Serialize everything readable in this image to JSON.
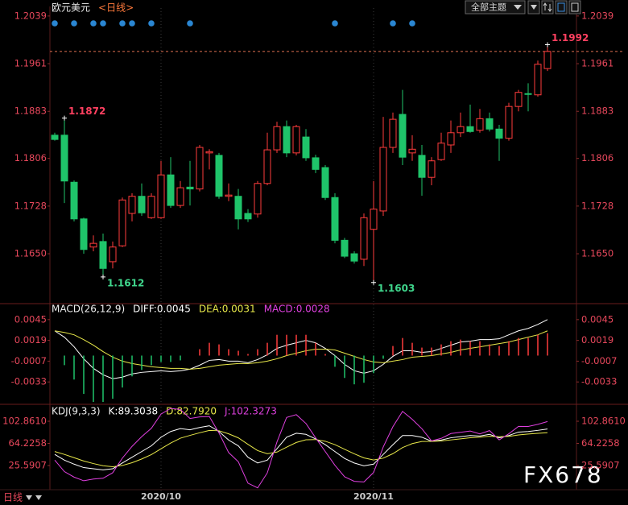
{
  "toolbar": {
    "theme_button": "全部主题"
  },
  "footer": {
    "period": "日线"
  },
  "watermark": "FX678",
  "chart_data": [
    {
      "type": "candlestick",
      "title": "欧元美元",
      "subtitle": "<日线>",
      "title_color": "#eeeeee",
      "subtitle_color": "#ff7a3c",
      "categories": [
        null,
        null,
        null,
        null,
        null,
        null,
        null,
        null,
        null,
        null,
        null,
        "2020/10",
        null,
        null,
        null,
        null,
        null,
        null,
        null,
        null,
        null,
        null,
        null,
        null,
        null,
        null,
        null,
        null,
        null,
        null,
        null,
        null,
        null,
        "2020/11",
        null,
        null,
        null,
        null,
        null,
        null,
        null,
        null,
        null,
        null,
        null,
        null,
        null,
        null,
        null,
        null,
        null,
        null
      ],
      "open": [
        1.1844,
        1.1844,
        1.1767,
        1.1707,
        1.1661,
        1.167,
        1.1637,
        1.1663,
        1.1716,
        1.1744,
        1.1709,
        1.1709,
        1.1779,
        1.1729,
        1.1759,
        1.1756,
        1.1815,
        1.1811,
        1.1744,
        1.1744,
        1.1716,
        1.1715,
        1.1765,
        1.182,
        1.1858,
        1.1815,
        1.1841,
        1.1807,
        1.1791,
        1.1742,
        1.1672,
        1.165,
        1.1641,
        1.169,
        1.172,
        1.1824,
        1.1878,
        1.1815,
        1.1811,
        1.1775,
        1.1804,
        1.1828,
        1.1848,
        1.1858,
        1.1852,
        1.1871,
        1.1854,
        1.1839,
        1.1891,
        1.1912,
        1.191,
        1.1953
      ],
      "high": [
        1.1848,
        1.1872,
        1.177,
        1.1709,
        1.168,
        1.1683,
        1.167,
        1.1742,
        1.1749,
        1.1765,
        1.1749,
        1.1802,
        1.1808,
        1.1769,
        1.1802,
        1.1828,
        1.1821,
        1.1815,
        1.1765,
        1.1756,
        1.1723,
        1.1769,
        1.1848,
        1.1866,
        1.1868,
        1.1861,
        1.1854,
        1.1812,
        1.1795,
        1.1749,
        1.1676,
        1.1654,
        1.1716,
        1.1769,
        1.1874,
        1.1881,
        1.1918,
        1.1844,
        1.1828,
        1.1808,
        1.1848,
        1.1868,
        1.1881,
        1.1894,
        1.1887,
        1.1881,
        1.1861,
        1.1897,
        1.1918,
        1.1929,
        1.1966,
        1.1992
      ],
      "low": [
        1.1835,
        1.1733,
        1.1703,
        1.165,
        1.1654,
        1.1612,
        1.1626,
        1.1661,
        1.1703,
        1.1712,
        1.1707,
        1.1707,
        1.1725,
        1.1725,
        1.1729,
        1.1752,
        1.1788,
        1.174,
        1.1736,
        1.169,
        1.1702,
        1.1709,
        1.1762,
        1.1815,
        1.1808,
        1.1811,
        1.1802,
        1.1782,
        1.1738,
        1.1667,
        1.1643,
        1.1634,
        1.163,
        1.1603,
        1.1712,
        1.1815,
        1.1795,
        1.1802,
        1.1745,
        1.1762,
        1.1802,
        1.1815,
        1.1841,
        1.1848,
        1.1848,
        1.185,
        1.1802,
        1.1835,
        1.1883,
        1.1883,
        1.1907,
        1.1949
      ],
      "close": [
        1.1837,
        1.1769,
        1.1707,
        1.1657,
        1.1667,
        1.1626,
        1.1661,
        1.1738,
        1.1744,
        1.1717,
        1.1744,
        1.1779,
        1.1729,
        1.1758,
        1.1756,
        1.1824,
        1.1817,
        1.1744,
        1.1746,
        1.1707,
        1.1707,
        1.1765,
        1.182,
        1.1858,
        1.1815,
        1.1858,
        1.1807,
        1.1788,
        1.1742,
        1.1672,
        1.1646,
        1.1638,
        1.1709,
        1.1723,
        1.1824,
        1.187,
        1.1808,
        1.1821,
        1.1775,
        1.1802,
        1.1831,
        1.1848,
        1.1858,
        1.185,
        1.1871,
        1.1854,
        1.1839,
        1.1891,
        1.1914,
        1.1911,
        1.196,
        1.1981
      ],
      "up_color": "#ff3c3c",
      "down_color": "#1fc46a",
      "high_label_color": "#ff4060",
      "low_label_color": "#3fd68c",
      "last_line_color": "#e07050",
      "signals": [
        0,
        2,
        4,
        5,
        7,
        8,
        10,
        14,
        29,
        35,
        37
      ],
      "signal_color": "#2a86d2",
      "ylim": [
        1.1571,
        1.2052
      ],
      "yticks": [
        1.2039,
        1.1961,
        1.1883,
        1.1806,
        1.1728,
        {
          "value": 1.165,
          "label": "1.1650"
        }
      ]
    },
    {
      "type": "macd",
      "title": "MACD(26,12,9)",
      "title_color": "#eeeeee",
      "series": [
        {
          "name": "DIFF:0.0045",
          "style": "line",
          "color": "#ffffff",
          "values": [
            0.0031,
            0.0023,
            0.0011,
            -0.0004,
            -0.0016,
            -0.0024,
            -0.0029,
            -0.0027,
            -0.0023,
            -0.0021,
            -0.002,
            -0.0019,
            -0.002,
            -0.0019,
            -0.0017,
            -0.0012,
            -0.0006,
            -0.0005,
            -0.0007,
            -0.0007,
            -0.0009,
            -0.0005,
            0.0001,
            0.0009,
            0.0013,
            0.0016,
            0.0019,
            0.0016,
            0.0009,
            0.0,
            -0.0011,
            -0.0019,
            -0.0022,
            -0.0019,
            -0.0011,
            -0.0001,
            0.0006,
            0.0006,
            0.0004,
            0.0005,
            0.0009,
            0.0013,
            0.0017,
            0.0018,
            0.002,
            0.002,
            0.0021,
            0.0026,
            0.0031,
            0.0034,
            0.0039,
            0.0045
          ]
        },
        {
          "name": "DEA:0.0031",
          "style": "line",
          "color": "#e8e84a",
          "values": [
            0.0031,
            0.0029,
            0.0026,
            0.002,
            0.0013,
            0.0005,
            -0.0002,
            -0.0007,
            -0.001,
            -0.0012,
            -0.0014,
            -0.0015,
            -0.0016,
            -0.0016,
            -0.0017,
            -0.0016,
            -0.0014,
            -0.0012,
            -0.0011,
            -0.001,
            -0.001,
            -0.0009,
            -0.0007,
            -0.0004,
            0.0,
            0.0003,
            0.0006,
            0.0008,
            0.0008,
            0.0007,
            0.0003,
            -0.0001,
            -0.0005,
            -0.0008,
            -0.0009,
            -0.0007,
            -0.0005,
            -0.0002,
            -0.0001,
            0.0,
            0.0002,
            0.0004,
            0.0007,
            0.0009,
            0.0011,
            0.0013,
            0.0015,
            0.0017,
            0.002,
            0.0023,
            0.0026,
            0.0031
          ]
        },
        {
          "name": "MACD:0.0028",
          "style": "histogram",
          "color": "#e040e0",
          "up_color": "#ff3c3c",
          "down_color": "#1fc46a",
          "values": [
            0,
            -0.0012,
            -0.003,
            -0.0048,
            -0.0058,
            -0.0058,
            -0.0054,
            -0.004,
            -0.0026,
            -0.0018,
            -0.0012,
            -0.0008,
            -0.0008,
            -0.0006,
            0,
            0.0008,
            0.0016,
            0.0014,
            0.0008,
            0.0006,
            0.0002,
            0.0008,
            0.0016,
            0.0026,
            0.0026,
            0.0026,
            0.0026,
            0.0016,
            0.0002,
            -0.0014,
            -0.0028,
            -0.0036,
            -0.0034,
            -0.0022,
            -0.0004,
            0.0012,
            0.0022,
            0.0016,
            0.001,
            0.001,
            0.0014,
            0.0018,
            0.002,
            0.0018,
            0.0018,
            0.0014,
            0.0012,
            0.0018,
            0.0022,
            0.0022,
            0.0026,
            0.0028
          ]
        }
      ],
      "ylim": [
        -0.0059,
        0.0064
      ],
      "yticks": [
        0.0045,
        0.0019,
        -0.0007,
        -0.0033
      ]
    },
    {
      "type": "kdj",
      "title": "KDJ(9,3,3)",
      "title_color": "#eeeeee",
      "series": [
        {
          "name": "K:89.3038",
          "style": "line",
          "color": "#ffffff",
          "values": [
            45,
            35,
            28,
            22,
            20,
            18,
            20,
            30,
            40,
            50,
            60,
            75,
            85,
            90,
            88,
            92,
            95,
            85,
            70,
            60,
            40,
            30,
            35,
            55,
            75,
            82,
            80,
            72,
            62,
            50,
            38,
            30,
            25,
            28,
            45,
            62,
            78,
            78,
            75,
            68,
            70,
            74,
            76,
            78,
            77,
            80,
            74,
            78,
            84,
            85,
            87,
            89.3038
          ]
        },
        {
          "name": "D:82.7920",
          "style": "line",
          "color": "#e8e84a",
          "values": [
            50,
            45,
            39.3,
            33.5,
            29,
            25.3,
            23.5,
            25.7,
            30.5,
            37,
            44.7,
            54.8,
            64.9,
            73.3,
            78.2,
            82.8,
            86.9,
            86.3,
            80.9,
            73.9,
            62.6,
            51.7,
            46.1,
            49.1,
            57.7,
            65.8,
            70.5,
            71,
            68,
            62,
            54,
            46,
            39,
            35.3,
            38.5,
            46.3,
            56.9,
            63.9,
            67.6,
            67.7,
            68.5,
            70.3,
            72.2,
            74.1,
            75.1,
            76.7,
            75.8,
            76.5,
            79,
            80.6,
            81.8,
            82.792
          ]
        },
        {
          "name": "J:102.3273",
          "style": "line",
          "color": "#e040e0",
          "values": [
            35,
            15,
            5.4,
            -1,
            2,
            3.4,
            13,
            38.6,
            59,
            76,
            90.6,
            115.4,
            125.2,
            123.4,
            107.6,
            110.4,
            111.2,
            82.4,
            48.2,
            32.2,
            -5.2,
            -13.4,
            12.8,
            66.8,
            109.6,
            114.4,
            99,
            74,
            50,
            26,
            6,
            -2,
            -3,
            13.4,
            58,
            93.4,
            120.2,
            106.2,
            89.8,
            68.6,
            73,
            81.4,
            83.6,
            85.8,
            80.8,
            86.6,
            70.4,
            81,
            94,
            93.8,
            97.4,
            102.3273
          ]
        }
      ],
      "ylim": [
        -19.4,
        128.2
      ],
      "yticks": [
        {
          "value": 102.861,
          "label": "102.8610"
        },
        64.2258,
        25.5907
      ]
    }
  ]
}
